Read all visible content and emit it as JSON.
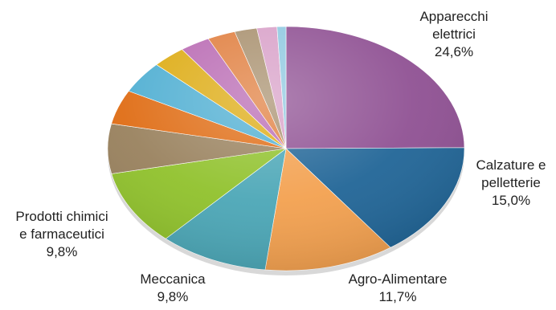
{
  "chart_data": {
    "type": "pie",
    "slices": [
      {
        "label_lines": [
          "Apparecchi",
          "elettrici"
        ],
        "value_text": "24,6%",
        "value": 24.6,
        "color": "#8e4f92"
      },
      {
        "label_lines": [
          "Calzature e",
          "pelletterie"
        ],
        "value_text": "15,0%",
        "value": 15.0,
        "color": "#1f6496"
      },
      {
        "label_lines": [
          "Agro-Alimentare"
        ],
        "value_text": "11,7%",
        "value": 11.7,
        "color": "#f3a04e"
      },
      {
        "label_lines": [
          "Meccanica"
        ],
        "value_text": "9,8%",
        "value": 9.8,
        "color": "#4aa6b6"
      },
      {
        "label_lines": [
          "Prodotti chimici",
          "e farmaceutici"
        ],
        "value_text": "9,8%",
        "value": 9.8,
        "color": "#8fc12a"
      },
      {
        "value": 6.5,
        "color": "#98805c"
      },
      {
        "value": 4.5,
        "color": "#df6b12"
      },
      {
        "value": 4.2,
        "color": "#4eaed2"
      },
      {
        "value": 3.0,
        "color": "#ddab12"
      },
      {
        "value": 2.7,
        "color": "#b96ab3"
      },
      {
        "value": 2.5,
        "color": "#e07e3e"
      },
      {
        "value": 2.0,
        "color": "#a8906e"
      },
      {
        "value": 1.8,
        "color": "#d8a0c8"
      },
      {
        "value": 0.8,
        "color": "#8ec8e0"
      }
    ]
  }
}
